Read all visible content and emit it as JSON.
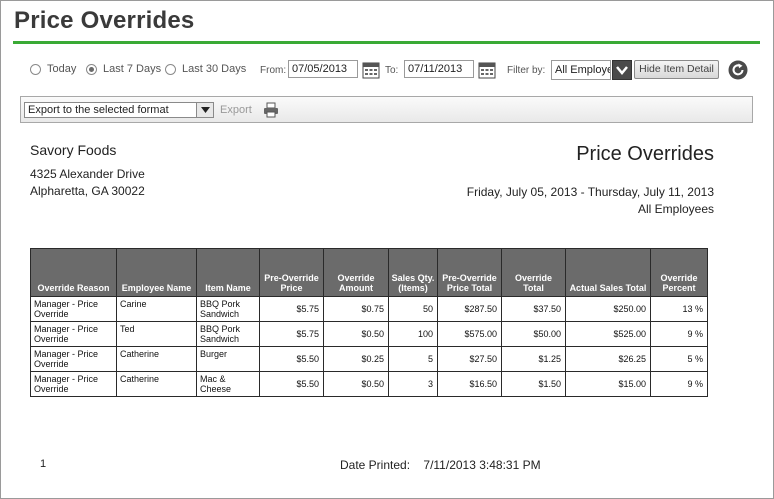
{
  "page": {
    "title": "Price Overrides"
  },
  "filters": {
    "ranges": [
      {
        "label": "Today",
        "checked": false
      },
      {
        "label": "Last 7 Days",
        "checked": true
      },
      {
        "label": "Last 30 Days",
        "checked": false
      }
    ],
    "from_label": "From:",
    "from_value": "07/05/2013",
    "to_label": "To:",
    "to_value": "07/11/2013",
    "filter_by_label": "Filter by:",
    "employee_value": "All Employees",
    "hide_detail_label": "Hide Item Detail"
  },
  "toolbar": {
    "format_select": "Export to the selected format",
    "export_label": "Export"
  },
  "report": {
    "company": "Savory Foods",
    "address1": "4325 Alexander Drive",
    "address2": "Alpharetta, GA 30022",
    "title": "Price Overrides",
    "date_range": "Friday, July 05, 2013 - Thursday, July 11, 2013",
    "employees": "All Employees",
    "columns": [
      "Override Reason",
      "Employee Name",
      "Item Name",
      "Pre-Override Price",
      "Override Amount",
      "Sales Qty. (Items)",
      "Pre-Override Price Total",
      "Override Total",
      "Actual Sales Total",
      "Override Percent"
    ],
    "rows": [
      [
        "Manager - Price Override",
        "Carine",
        "BBQ Pork Sandwich",
        "$5.75",
        "$0.75",
        "50",
        "$287.50",
        "$37.50",
        "$250.00",
        "13 %"
      ],
      [
        "Manager - Price Override",
        "Ted",
        "BBQ Pork Sandwich",
        "$5.75",
        "$0.50",
        "100",
        "$575.00",
        "$50.00",
        "$525.00",
        "9 %"
      ],
      [
        "Manager - Price Override",
        "Catherine",
        "Burger",
        "$5.50",
        "$0.25",
        "5",
        "$27.50",
        "$1.25",
        "$26.25",
        "5 %"
      ],
      [
        "Manager - Price Override",
        "Catherine",
        "Mac & Cheese",
        "$5.50",
        "$0.50",
        "3",
        "$16.50",
        "$1.50",
        "$15.00",
        "9 %"
      ]
    ]
  },
  "footer": {
    "page_number": "1",
    "date_printed_label": "Date Printed:",
    "date_printed_value": "7/11/2013 3:48:31 PM"
  }
}
